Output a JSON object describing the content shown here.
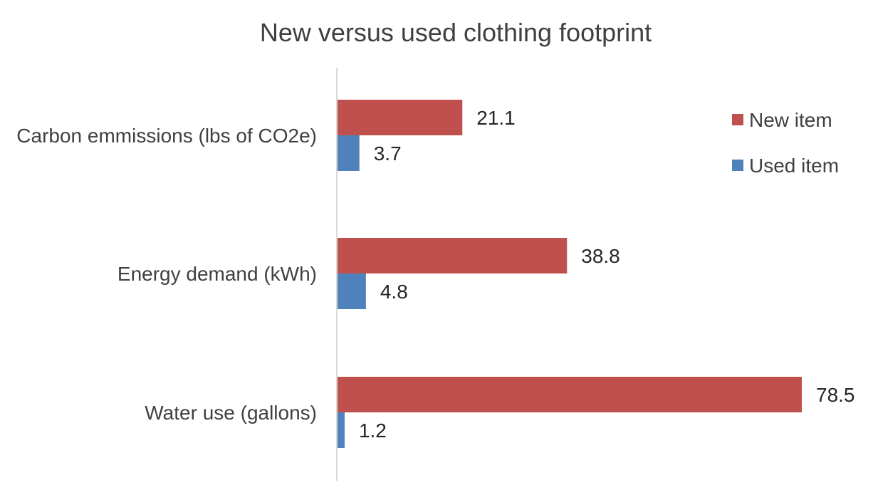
{
  "chart_data": {
    "type": "bar",
    "orientation": "horizontal",
    "title": "New versus used clothing footprint",
    "categories": [
      "Carbon emmissions (lbs of CO2e)",
      "Energy demand (kWh)",
      "Water use (gallons)"
    ],
    "series": [
      {
        "name": "New item",
        "values": [
          21.1,
          38.8,
          78.5
        ],
        "color": "#c0504d"
      },
      {
        "name": "Used item",
        "values": [
          3.7,
          4.8,
          1.2
        ],
        "color": "#4f81bd"
      }
    ],
    "data_labels": true,
    "xlim": [
      0,
      80
    ],
    "grid": false,
    "legend_position": "top-right",
    "axis_color": "#d9d9d9"
  }
}
